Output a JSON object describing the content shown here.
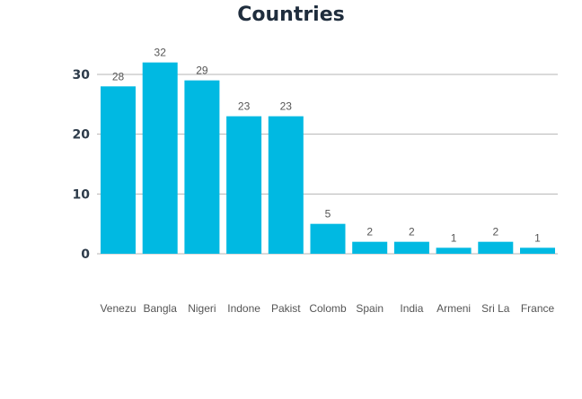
{
  "chart_data": {
    "type": "bar",
    "title": "Countries",
    "xlabel": "",
    "ylabel": "",
    "categories": [
      "Venezu",
      "Bangla",
      "Nigeri",
      "Indone",
      "Pakist",
      "Colomb",
      "Spain",
      "India",
      "Armeni",
      "Sri La",
      "France"
    ],
    "values": [
      28,
      32,
      29,
      23,
      23,
      5,
      2,
      2,
      1,
      2,
      1
    ],
    "ylim": [
      0,
      30
    ],
    "yticks": [
      0,
      10,
      20,
      30
    ],
    "grid": true,
    "legend": "none",
    "bar_color": "#00b9e2"
  }
}
